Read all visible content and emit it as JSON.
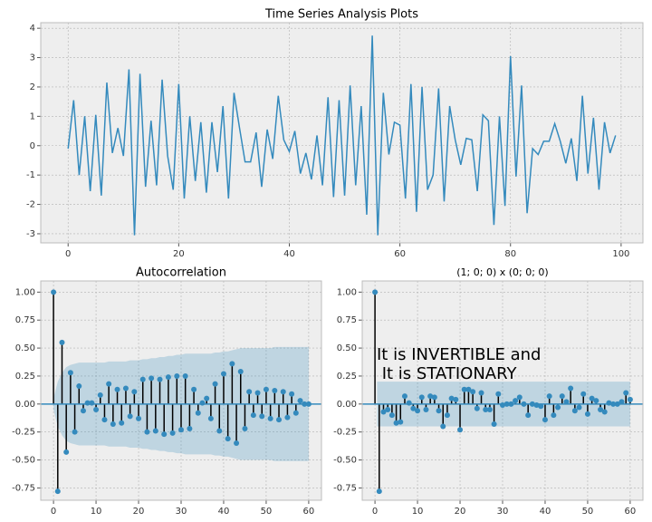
{
  "chart_data": [
    {
      "type": "line",
      "title": "Time Series Analysis Plots",
      "color": "#348abd",
      "grid": true,
      "x": [
        0,
        1,
        2,
        3,
        4,
        5,
        6,
        7,
        8,
        9,
        10,
        11,
        12,
        13,
        14,
        15,
        16,
        17,
        18,
        19,
        20,
        21,
        22,
        23,
        24,
        25,
        26,
        27,
        28,
        29,
        30,
        31,
        32,
        33,
        34,
        35,
        36,
        37,
        38,
        39,
        40,
        41,
        42,
        43,
        44,
        45,
        46,
        47,
        48,
        49,
        50,
        51,
        52,
        53,
        54,
        55,
        56,
        57,
        58,
        59,
        60,
        61,
        62,
        63,
        64,
        65,
        66,
        67,
        68,
        69,
        70,
        71,
        72,
        73,
        74,
        75,
        76,
        77,
        78,
        79,
        80,
        81,
        82,
        83,
        84,
        85,
        86,
        87,
        88,
        89,
        90,
        91,
        92,
        93,
        94,
        95,
        96,
        97,
        98,
        99
      ],
      "values": [
        -0.1,
        1.55,
        -1.0,
        1.0,
        -1.55,
        1.05,
        -1.7,
        2.15,
        -0.25,
        0.6,
        -0.35,
        2.6,
        -3.05,
        2.45,
        -1.4,
        0.85,
        -1.35,
        2.25,
        -0.35,
        -1.5,
        2.1,
        -1.8,
        1.0,
        -1.2,
        0.8,
        -1.6,
        0.8,
        -0.9,
        1.35,
        -1.8,
        1.8,
        0.6,
        -0.55,
        -0.55,
        0.45,
        -1.4,
        0.55,
        -0.45,
        1.7,
        0.2,
        -0.2,
        0.5,
        -0.95,
        -0.25,
        -1.15,
        0.35,
        -1.35,
        1.65,
        -1.75,
        1.55,
        -1.7,
        2.05,
        -1.35,
        1.35,
        -2.35,
        3.75,
        -3.05,
        1.8,
        -0.3,
        0.8,
        0.7,
        -1.8,
        2.1,
        -2.25,
        2.0,
        -1.5,
        -1.0,
        1.95,
        -1.9,
        1.35,
        0.2,
        -0.65,
        0.25,
        0.2,
        -1.55,
        1.05,
        0.85,
        -2.7,
        1.0,
        -2.05,
        3.05,
        -1.05,
        2.05,
        -2.3,
        -0.1,
        -0.3,
        0.15,
        0.15,
        0.75,
        0.15,
        -0.6,
        0.25,
        -1.2,
        1.7,
        -0.95,
        0.95,
        -1.5,
        0.8,
        -0.25,
        0.35
      ],
      "xlim": [
        -4.95,
        103.95
      ],
      "ylim": [
        -3.31,
        4.19
      ],
      "xticks": [
        0,
        20,
        40,
        60,
        80,
        100
      ],
      "yticks": [
        -3,
        -2,
        -1,
        0,
        1,
        2,
        3,
        4
      ]
    },
    {
      "type": "stem",
      "title": "Autocorrelation",
      "color": "#348abd",
      "grid": true,
      "x": [
        0,
        1,
        2,
        3,
        4,
        5,
        6,
        7,
        8,
        9,
        10,
        11,
        12,
        13,
        14,
        15,
        16,
        17,
        18,
        19,
        20,
        21,
        22,
        23,
        24,
        25,
        26,
        27,
        28,
        29,
        30,
        31,
        32,
        33,
        34,
        35,
        36,
        37,
        38,
        39,
        40,
        41,
        42,
        43,
        44,
        45,
        46,
        47,
        48,
        49,
        50,
        51,
        52,
        53,
        54,
        55,
        56,
        57,
        58,
        59,
        60
      ],
      "values": [
        1.0,
        -0.78,
        0.55,
        -0.43,
        0.28,
        -0.25,
        0.16,
        -0.06,
        0.01,
        0.01,
        -0.05,
        0.08,
        -0.14,
        0.18,
        -0.18,
        0.13,
        -0.17,
        0.14,
        -0.11,
        0.11,
        -0.13,
        0.22,
        -0.25,
        0.23,
        -0.24,
        0.22,
        -0.27,
        0.24,
        -0.26,
        0.25,
        -0.23,
        0.25,
        -0.22,
        0.13,
        -0.08,
        0.01,
        0.05,
        -0.13,
        0.18,
        -0.24,
        0.27,
        -0.31,
        0.36,
        -0.35,
        0.29,
        -0.22,
        0.11,
        -0.1,
        0.1,
        -0.11,
        0.13,
        -0.13,
        0.12,
        -0.14,
        0.11,
        -0.12,
        0.09,
        -0.08,
        0.03,
        0.0,
        0.0
      ],
      "confidence_upper": [
        0.05,
        0.2,
        0.28,
        0.33,
        0.35,
        0.36,
        0.37,
        0.37,
        0.37,
        0.37,
        0.37,
        0.37,
        0.37,
        0.38,
        0.38,
        0.38,
        0.38,
        0.38,
        0.39,
        0.39,
        0.39,
        0.4,
        0.4,
        0.41,
        0.41,
        0.42,
        0.42,
        0.43,
        0.43,
        0.44,
        0.44,
        0.45,
        0.45,
        0.45,
        0.45,
        0.45,
        0.45,
        0.45,
        0.46,
        0.46,
        0.47,
        0.47,
        0.48,
        0.49,
        0.5,
        0.5,
        0.5,
        0.5,
        0.5,
        0.5,
        0.5,
        0.5,
        0.51,
        0.51,
        0.51,
        0.51,
        0.51,
        0.51,
        0.51,
        0.51,
        0.51
      ],
      "confidence_lower": [
        -0.05,
        -0.2,
        -0.28,
        -0.33,
        -0.35,
        -0.36,
        -0.37,
        -0.37,
        -0.37,
        -0.37,
        -0.37,
        -0.37,
        -0.37,
        -0.38,
        -0.38,
        -0.38,
        -0.38,
        -0.38,
        -0.39,
        -0.39,
        -0.39,
        -0.4,
        -0.4,
        -0.41,
        -0.41,
        -0.42,
        -0.42,
        -0.43,
        -0.43,
        -0.44,
        -0.44,
        -0.45,
        -0.45,
        -0.45,
        -0.45,
        -0.45,
        -0.45,
        -0.45,
        -0.46,
        -0.46,
        -0.47,
        -0.47,
        -0.48,
        -0.49,
        -0.5,
        -0.5,
        -0.5,
        -0.5,
        -0.5,
        -0.5,
        -0.5,
        -0.5,
        -0.51,
        -0.51,
        -0.51,
        -0.51,
        -0.51,
        -0.51,
        -0.51,
        -0.51,
        -0.51
      ],
      "xlim": [
        -3,
        63
      ],
      "ylim": [
        -0.86,
        1.1
      ],
      "xticks": [
        0,
        10,
        20,
        30,
        40,
        50,
        60
      ],
      "yticks": [
        -0.75,
        {
          "value": -0.5,
          "label": "-0.50"
        },
        -0.25,
        {
          "value": 0,
          "label": "0.00"
        },
        0.25,
        {
          "value": 0.5,
          "label": "0.50"
        },
        0.75,
        {
          "value": 1,
          "label": "1.00"
        }
      ]
    },
    {
      "type": "stem",
      "title": "(1; 0; 0) x (0; 0; 0)",
      "color": "#348abd",
      "grid": true,
      "annotation": [
        "It is INVERTIBLE and",
        " It is STATIONARY"
      ],
      "x": [
        0,
        1,
        2,
        3,
        4,
        5,
        6,
        7,
        8,
        9,
        10,
        11,
        12,
        13,
        14,
        15,
        16,
        17,
        18,
        19,
        20,
        21,
        22,
        23,
        24,
        25,
        26,
        27,
        28,
        29,
        30,
        31,
        32,
        33,
        34,
        35,
        36,
        37,
        38,
        39,
        40,
        41,
        42,
        43,
        44,
        45,
        46,
        47,
        48,
        49,
        50,
        51,
        52,
        53,
        54,
        55,
        56,
        57,
        58,
        59,
        60
      ],
      "values": [
        1.0,
        -0.78,
        -0.07,
        -0.05,
        -0.1,
        -0.17,
        -0.16,
        0.07,
        0.01,
        -0.04,
        -0.06,
        0.06,
        -0.05,
        0.07,
        0.06,
        -0.06,
        -0.2,
        -0.1,
        0.05,
        0.04,
        -0.23,
        0.13,
        0.13,
        0.11,
        -0.04,
        0.1,
        -0.05,
        -0.05,
        -0.18,
        0.09,
        -0.01,
        0.0,
        0.0,
        0.03,
        0.06,
        0.0,
        -0.1,
        0.0,
        -0.01,
        -0.02,
        -0.14,
        0.07,
        -0.1,
        -0.03,
        0.07,
        0.02,
        0.14,
        -0.06,
        -0.03,
        0.09,
        -0.09,
        0.05,
        0.03,
        -0.05,
        -0.07,
        0.01,
        0.0,
        0.0,
        0.02,
        0.1,
        0.04
      ],
      "confidence_upper": 0.2,
      "confidence_lower": -0.2,
      "xlim": [
        -3,
        63
      ],
      "ylim": [
        -0.86,
        1.1
      ],
      "xticks": [
        0,
        10,
        20,
        30,
        40,
        50,
        60
      ],
      "yticks": [
        -0.75,
        {
          "value": -0.5,
          "label": "-0.50"
        },
        -0.25,
        {
          "value": 0,
          "label": "0.00"
        },
        0.25,
        {
          "value": 0.5,
          "label": "0.50"
        },
        0.75,
        {
          "value": 1,
          "label": "1.00"
        }
      ]
    }
  ]
}
